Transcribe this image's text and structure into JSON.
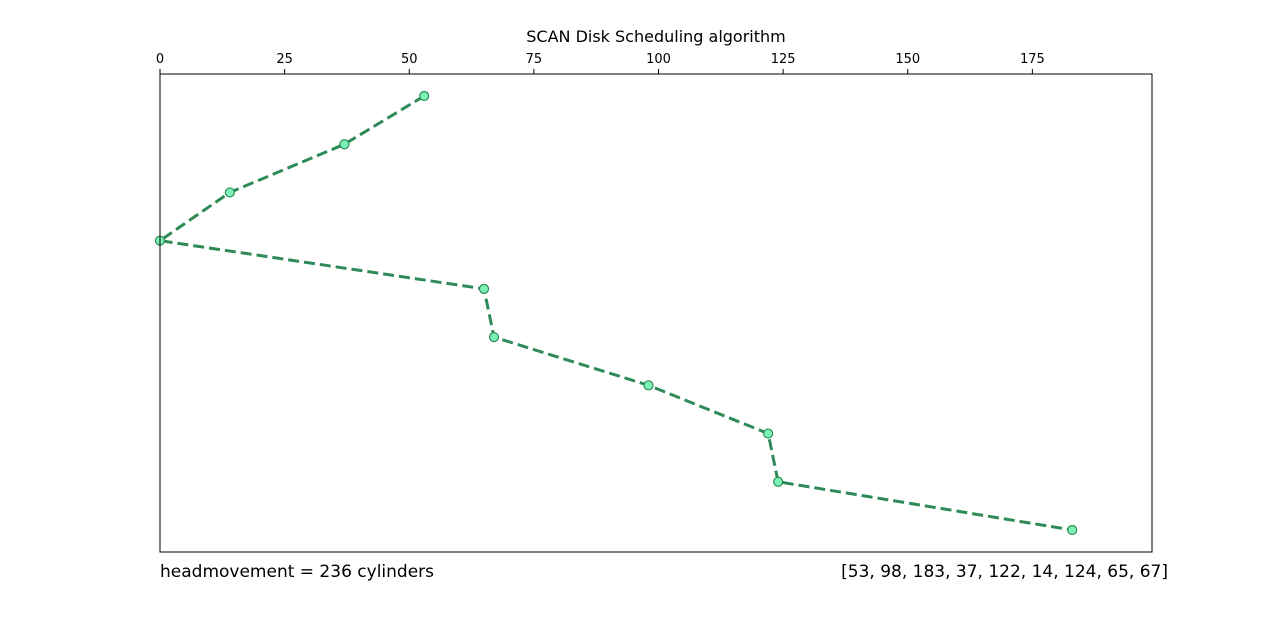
{
  "chart_data": {
    "type": "line",
    "title": "SCAN Disk Scheduling algorithm",
    "xlim": [
      0,
      199
    ],
    "x_ticks": [
      0,
      25,
      50,
      75,
      100,
      125,
      150,
      175
    ],
    "x_tick_labels": [
      "0",
      "25",
      "50",
      "75",
      "100",
      "125",
      "150",
      "175"
    ],
    "x_axis_position": "top",
    "y_axis_visible": false,
    "y_axis_inverted": true,
    "grid": false,
    "series": [
      {
        "x": [
          53,
          37,
          14,
          0,
          65,
          67,
          98,
          122,
          124,
          183
        ],
        "y": [
          0,
          1,
          2,
          3,
          4,
          5,
          6,
          7,
          8,
          9
        ],
        "line_style": "dashed",
        "line_color": "#2e8b57",
        "marker": "circle",
        "marker_face_color": "#7cf2b6",
        "marker_edge_color": "#2e8b57"
      }
    ]
  },
  "footer": {
    "head_movement": "headmovement = 236 cylinders",
    "request_queue": "[53, 98, 183, 37, 122, 14, 124, 65, 67]"
  }
}
